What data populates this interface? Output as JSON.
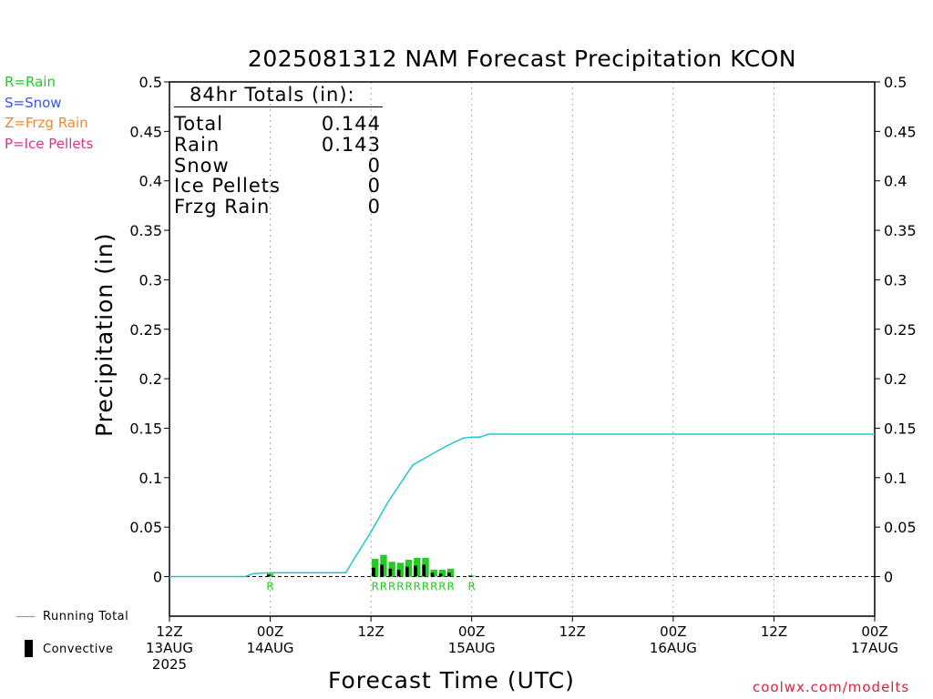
{
  "title": "2025081312 NAM Forecast Precipitation KCON",
  "legend": [
    {
      "label": "R=Rain",
      "color": "#22cc22"
    },
    {
      "label": "S=Snow",
      "color": "#3355ee"
    },
    {
      "label": "Z=Frzg Rain",
      "color": "#f08a30"
    },
    {
      "label": "P=Ice Pellets",
      "color": "#e0308a"
    }
  ],
  "totals": {
    "heading": "84hr Totals (in):",
    "rows": [
      {
        "label": "Total",
        "value": "0.144"
      },
      {
        "label": "Rain",
        "value": "0.143"
      },
      {
        "label": "Snow",
        "value": "0"
      },
      {
        "label": "Ice Pellets",
        "value": "0"
      },
      {
        "label": "Frzg Rain",
        "value": "0"
      }
    ]
  },
  "bottom_legend": {
    "running_total": "Running Total",
    "convective": "Convective"
  },
  "credit": "coolwx.com/modelts",
  "colors": {
    "running_total": "#1ec8d0",
    "precip_bar": "#22cc22",
    "convective_bar": "#000000",
    "rain_marker": "#22cc22"
  },
  "chart_data": {
    "type": "bar",
    "title": "2025081312 NAM Forecast Precipitation KCON",
    "xlabel": "Forecast Time (UTC)",
    "ylabel": "Precipitation (in)",
    "ylim": [
      -0.04,
      0.5
    ],
    "xlim": [
      0,
      84
    ],
    "yticks": [
      0,
      0.05,
      0.1,
      0.15,
      0.2,
      0.25,
      0.3,
      0.35,
      0.4,
      0.45,
      0.5
    ],
    "ytick_labels": [
      "0",
      "0.05",
      "0.1",
      "0.15",
      "0.2",
      "0.25",
      "0.3",
      "0.35",
      "0.4",
      "0.45",
      "0.5"
    ],
    "xticks": [
      {
        "hour": 0,
        "lines": [
          "12Z",
          "13AUG",
          "2025"
        ]
      },
      {
        "hour": 12,
        "lines": [
          "00Z",
          "14AUG"
        ]
      },
      {
        "hour": 24,
        "lines": [
          "12Z"
        ]
      },
      {
        "hour": 36,
        "lines": [
          "00Z",
          "15AUG"
        ]
      },
      {
        "hour": 48,
        "lines": [
          "12Z"
        ]
      },
      {
        "hour": 60,
        "lines": [
          "00Z",
          "16AUG"
        ]
      },
      {
        "hour": 72,
        "lines": [
          "12Z"
        ]
      },
      {
        "hour": 84,
        "lines": [
          "00Z",
          "17AUG"
        ]
      }
    ],
    "grid_vertical": true,
    "grid_horizontal": false,
    "bars": [
      {
        "hour": 1,
        "value": 0.003,
        "convective": 0.002,
        "type": "R"
      },
      {
        "hour": 2.5,
        "value": 0.018,
        "convective": 0.009,
        "type": "R"
      },
      {
        "hour": 3.5,
        "value": 0.022,
        "convective": 0.012,
        "type": "R"
      },
      {
        "hour": 4.5,
        "value": 0.015,
        "convective": 0.008,
        "type": "R"
      },
      {
        "hour": 5.5,
        "value": 0.014,
        "convective": 0.007,
        "type": "R"
      },
      {
        "hour": 6.5,
        "value": 0.017,
        "convective": 0.01,
        "type": "R"
      },
      {
        "hour": 7.5,
        "value": 0.019,
        "convective": 0.011,
        "type": "R"
      },
      {
        "hour": 8.5,
        "value": 0.019,
        "convective": 0.012,
        "type": "R"
      },
      {
        "hour": 9.5,
        "value": 0.007,
        "convective": 0.004,
        "type": "R"
      },
      {
        "hour": 10.5,
        "value": 0.007,
        "convective": 0.003,
        "type": "R"
      },
      {
        "hour": 11.5,
        "value": 0.008,
        "convective": 0.004,
        "type": "R"
      },
      {
        "hour": 14,
        "value": 0.001,
        "convective": 0.001,
        "type": "R"
      }
    ],
    "bar_base_hour": 24,
    "series": [
      {
        "name": "Running Total",
        "x": [
          0,
          9,
          10,
          12,
          19,
          21,
          22,
          24,
          26,
          29,
          33,
          35,
          36,
          37,
          38,
          84
        ],
        "y": [
          0,
          0,
          0.003,
          0.004,
          0.004,
          0.004,
          0.018,
          0.045,
          0.075,
          0.113,
          0.132,
          0.14,
          0.141,
          0.141,
          0.144,
          0.144
        ]
      }
    ]
  }
}
